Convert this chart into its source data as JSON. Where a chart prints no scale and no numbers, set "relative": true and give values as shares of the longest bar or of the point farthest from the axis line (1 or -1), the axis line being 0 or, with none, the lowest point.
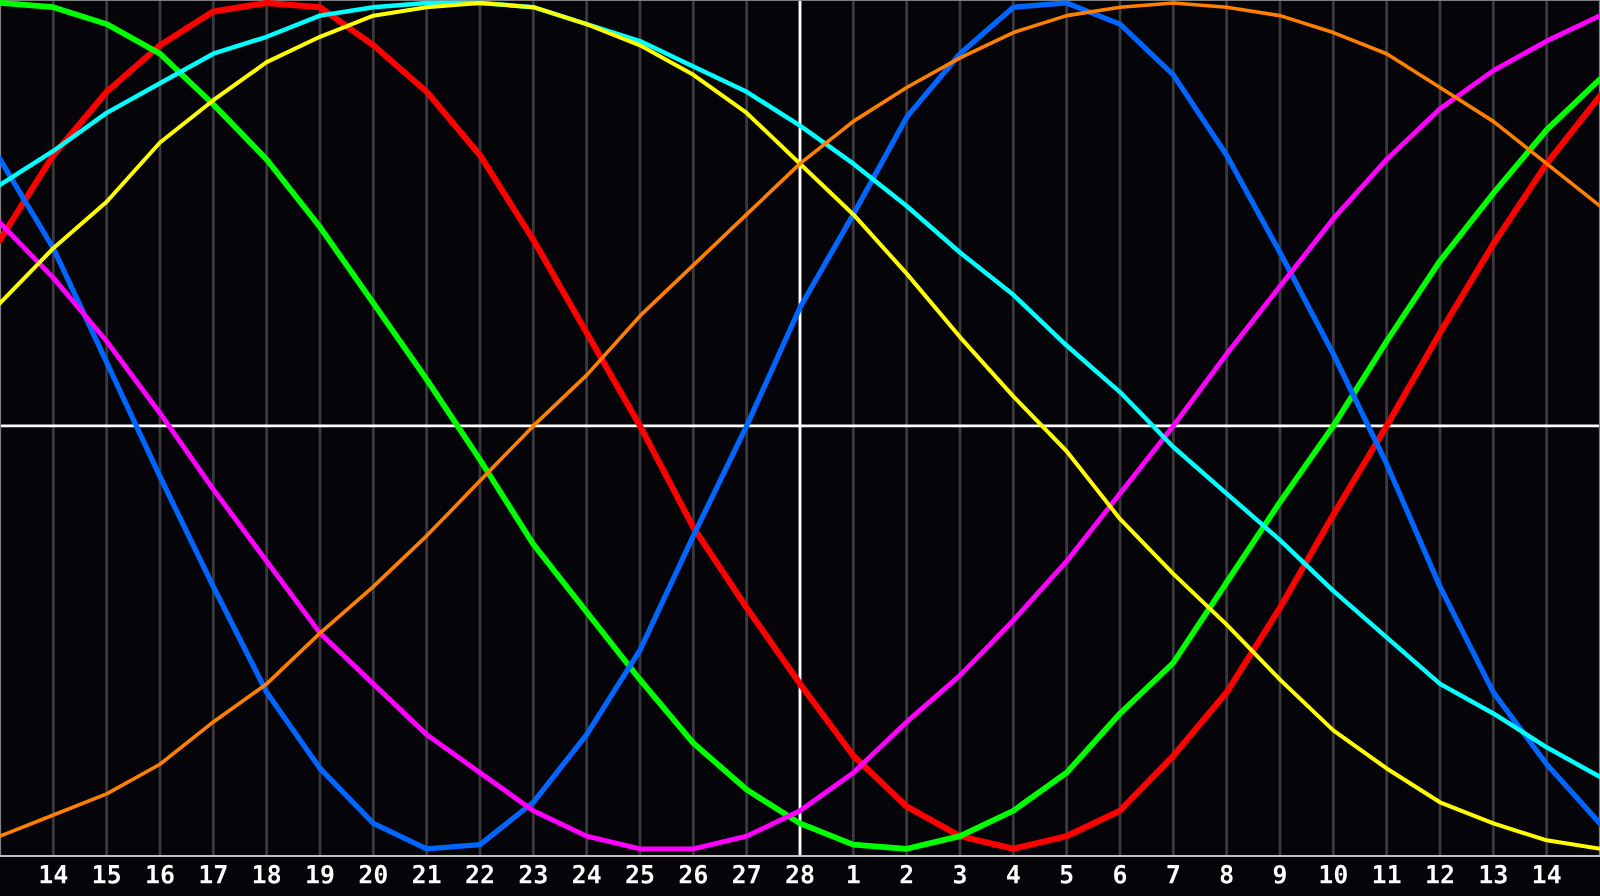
{
  "chart_data": {
    "type": "line",
    "relative": true,
    "grid": "x",
    "legend": false,
    "marker": "none",
    "line_style": "solid",
    "categories": [
      null,
      "14",
      "15",
      "16",
      "17",
      "18",
      "19",
      "20",
      "21",
      "22",
      "23",
      "24",
      "25",
      "26",
      "27",
      "28",
      "1",
      "2",
      "3",
      "4",
      "5",
      "6",
      "7",
      "8",
      "9",
      "10",
      "11",
      "12",
      "13",
      "14",
      null
    ],
    "ref_lines": [
      {
        "axis": "x",
        "value": "28",
        "color": "#ffffff"
      }
    ],
    "series": [
      {
        "color": "#ff0000",
        "values": [
          0.44,
          0.64,
          0.79,
          0.9,
          0.98,
          1.0,
          0.99,
          0.9,
          0.79,
          0.64,
          0.44,
          0.22,
          0,
          -0.24,
          -0.43,
          -0.61,
          -0.78,
          -0.9,
          -0.97,
          -1.0,
          -0.97,
          -0.91,
          -0.78,
          -0.63,
          -0.43,
          -0.21,
          0,
          0.22,
          0.43,
          0.62,
          0.78
        ]
      },
      {
        "color": "#00ff00",
        "values": [
          1.0,
          0.99,
          0.95,
          0.88,
          0.76,
          0.63,
          0.47,
          0.29,
          0.11,
          -0.08,
          -0.28,
          -0.44,
          -0.6,
          -0.75,
          -0.86,
          -0.94,
          -0.99,
          -1.0,
          -0.97,
          -0.91,
          -0.82,
          -0.68,
          -0.56,
          -0.37,
          -0.18,
          0,
          0.2,
          0.39,
          0.55,
          0.7,
          0.82
        ]
      },
      {
        "color": "#0066ff",
        "values": [
          0.63,
          0.42,
          0.15,
          -0.12,
          -0.38,
          -0.63,
          -0.81,
          -0.94,
          -1.0,
          -0.99,
          -0.89,
          -0.73,
          -0.53,
          -0.26,
          0,
          0.28,
          0.5,
          0.73,
          0.88,
          0.99,
          1.0,
          0.95,
          0.83,
          0.64,
          0.41,
          0.17,
          -0.09,
          -0.38,
          -0.63,
          -0.8,
          -0.94
        ]
      },
      {
        "color": "#ff00ff",
        "values": [
          0.48,
          0.35,
          0.2,
          0.03,
          -0.15,
          -0.32,
          -0.49,
          -0.61,
          -0.73,
          -0.82,
          -0.91,
          -0.97,
          -1.0,
          -1.0,
          -0.97,
          -0.91,
          -0.82,
          -0.7,
          -0.59,
          -0.46,
          -0.32,
          -0.16,
          0,
          0.17,
          0.33,
          0.49,
          0.63,
          0.75,
          0.84,
          0.91,
          0.97
        ]
      },
      {
        "color": "#00ffff",
        "values": [
          0.57,
          0.65,
          0.74,
          0.81,
          0.88,
          0.92,
          0.97,
          0.99,
          1.0,
          1.0,
          0.99,
          0.95,
          0.91,
          0.85,
          0.79,
          0.71,
          0.62,
          0.52,
          0.41,
          0.31,
          0.19,
          0.08,
          -0.05,
          -0.16,
          -0.27,
          -0.39,
          -0.5,
          -0.61,
          -0.68,
          -0.76,
          -0.83
        ]
      },
      {
        "color": "#ffff00",
        "values": [
          0.29,
          0.42,
          0.53,
          0.67,
          0.77,
          0.86,
          0.92,
          0.97,
          0.99,
          1.0,
          0.99,
          0.95,
          0.9,
          0.83,
          0.74,
          0.62,
          0.5,
          0.36,
          0.21,
          0.07,
          -0.06,
          -0.22,
          -0.35,
          -0.47,
          -0.6,
          -0.72,
          -0.81,
          -0.89,
          -0.94,
          -0.98,
          -1.0
        ]
      },
      {
        "color": "#ff8000",
        "values": [
          -0.97,
          -0.92,
          -0.87,
          -0.8,
          -0.7,
          -0.61,
          -0.49,
          -0.38,
          -0.26,
          -0.13,
          0,
          0.12,
          0.26,
          0.38,
          0.5,
          0.62,
          0.72,
          0.8,
          0.87,
          0.93,
          0.97,
          0.99,
          1.0,
          0.99,
          0.97,
          0.93,
          0.88,
          0.8,
          0.72,
          0.62,
          0.52
        ]
      }
    ]
  }
}
